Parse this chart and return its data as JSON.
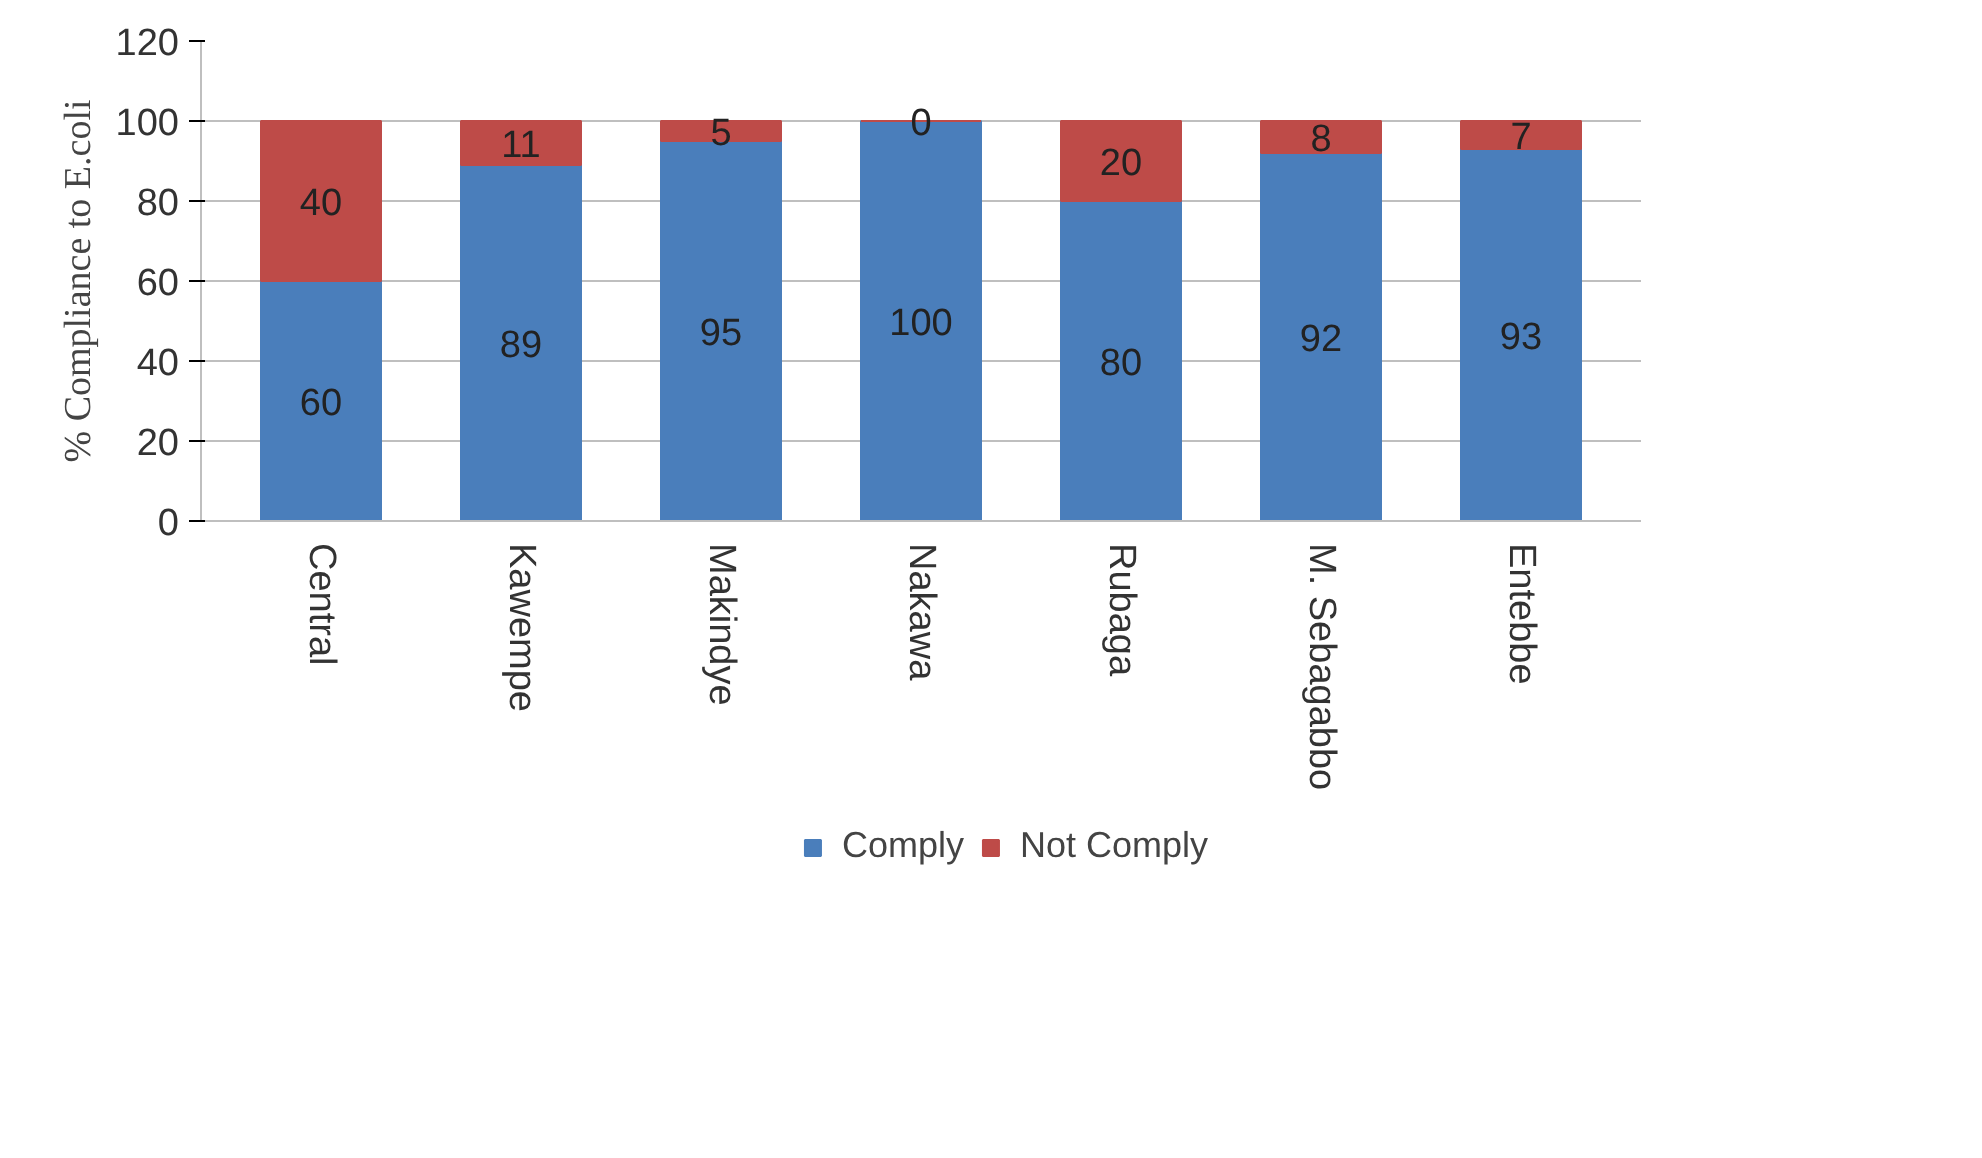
{
  "chart_data": {
    "type": "bar",
    "stacked": true,
    "ylabel": "% Compliance to E.coli",
    "categories": [
      "Central",
      "Kawempe",
      "Makindye",
      "Nakawa",
      "Rubaga",
      "M. Sebagabbo",
      "Entebbe"
    ],
    "series": [
      {
        "name": "Comply",
        "color": "#4a7ebb",
        "values": [
          60,
          89,
          95,
          100,
          80,
          92,
          93
        ]
      },
      {
        "name": "Not Comply",
        "color": "#be4b48",
        "values": [
          40,
          11,
          5,
          0,
          20,
          8,
          7
        ]
      }
    ],
    "ylim": [
      0,
      120
    ],
    "yticks": [
      0,
      20,
      40,
      60,
      80,
      100,
      120
    ],
    "grid": "y",
    "legend": "bottom",
    "data_labels": true
  }
}
